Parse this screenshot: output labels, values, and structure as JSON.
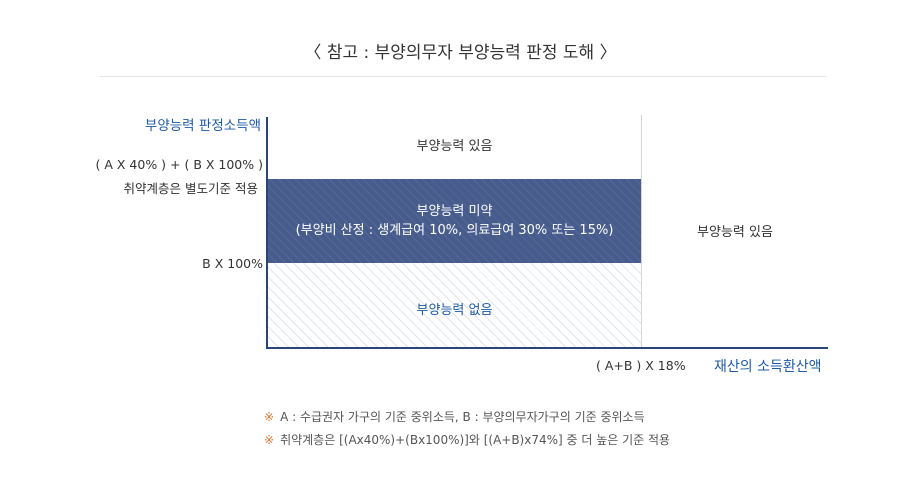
{
  "title": "〈 참고 : 부양의무자 부양능력 판정 도해 〉",
  "axes": {
    "y_title": "부양능력 판정소득액",
    "y_label_1a": "( A X 40% ) + ( B X 100% )",
    "y_label_1b": "취약계층은 별도기준 적용",
    "y_label_2": "B X 100%",
    "x_label": "( A+B ) X 18%",
    "x_title": "재산의 소득환산액"
  },
  "zones": {
    "top": "부양능력 있음",
    "middle_line1": "부양능력 미약",
    "middle_line2": "(부양비 산정 : 생계급여 10%, 의료급여 30% 또는 15%)",
    "bottom": "부양능력 없음",
    "right": "부양능력 있음"
  },
  "notes": [
    {
      "mark": "※",
      "text": "A : 수급권자 가구의 기준 중위소득, B : 부양의무자가구의 기준 중위소득"
    },
    {
      "mark": "※",
      "text": "취약계층은 [(Ax40%)+(Bx100%)]와 [(A+B)x74%] 중 더 높은 기준 적용"
    }
  ],
  "colors": {
    "axis": "#2a4679",
    "accent_text": "#1f5aa6",
    "middle_zone": "#475c8c",
    "note_mark": "#e07a3a"
  }
}
